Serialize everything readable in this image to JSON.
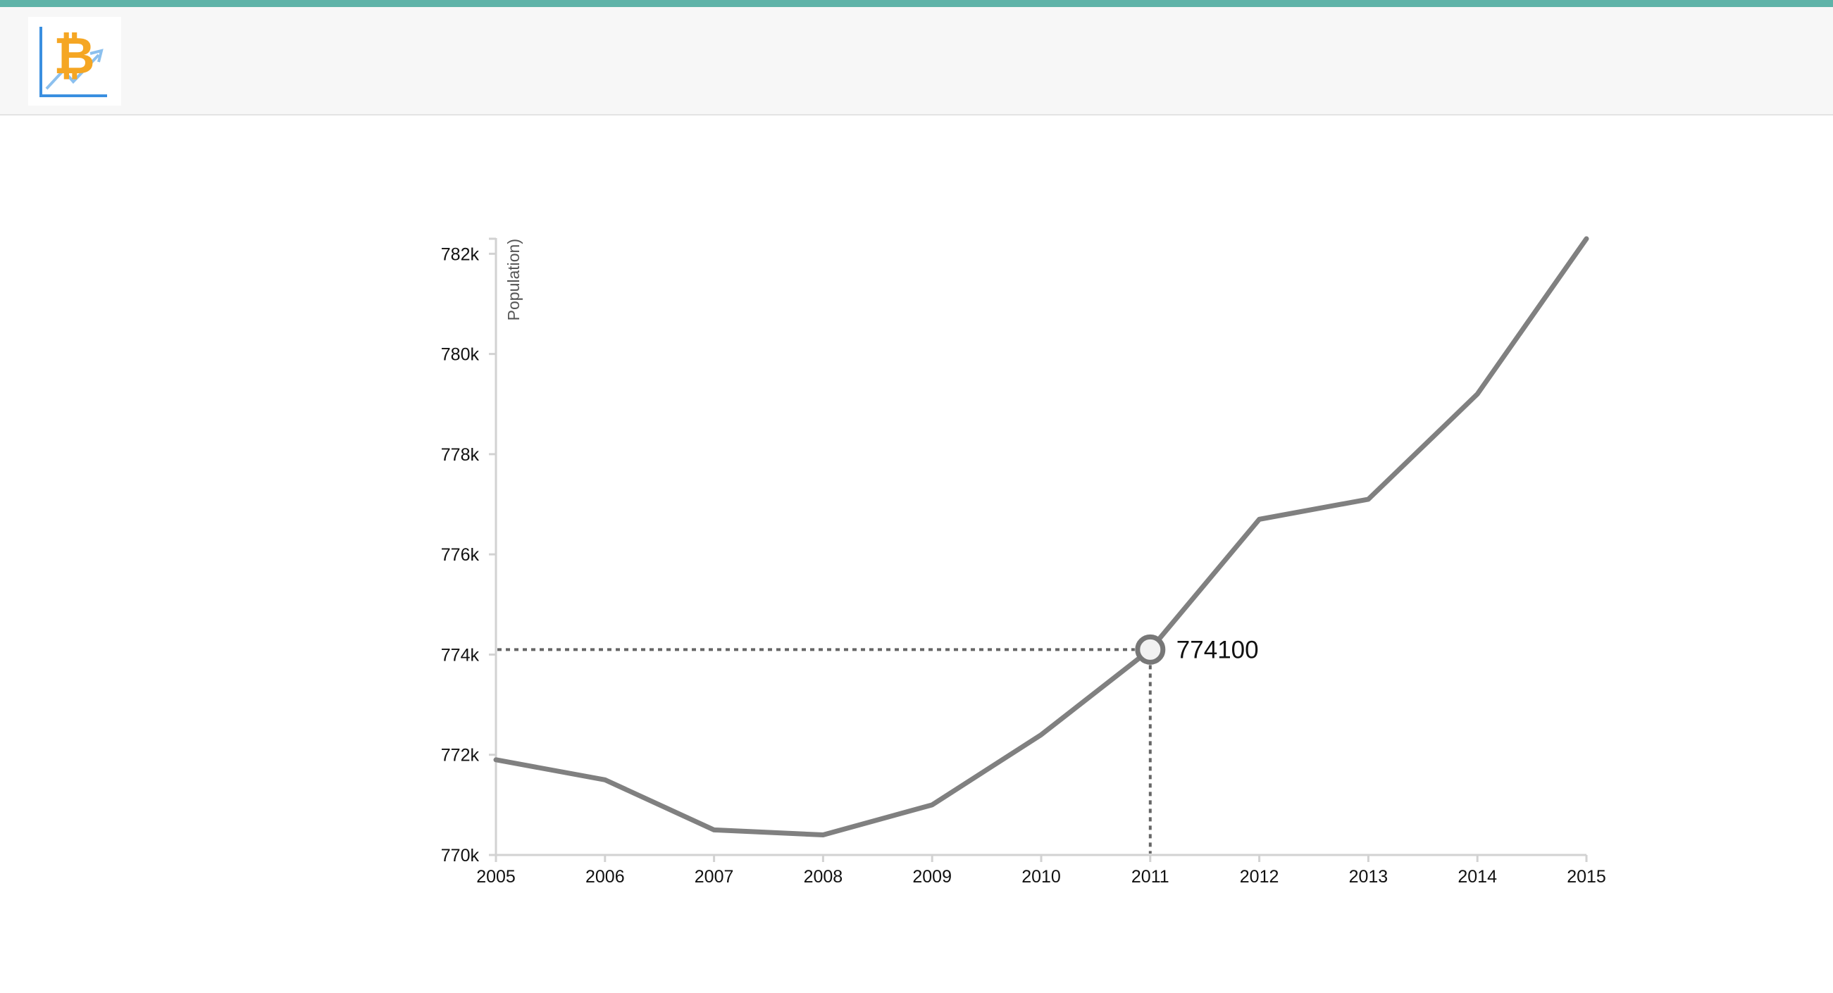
{
  "header": {
    "logo_icon": "bitcoin-chart-logo-icon"
  },
  "chart_data": {
    "type": "line",
    "xlabel": "",
    "ylabel": "Population)",
    "x": [
      2005,
      2006,
      2007,
      2008,
      2009,
      2010,
      2011,
      2012,
      2013,
      2014,
      2015
    ],
    "series": [
      {
        "values": [
          771900,
          771500,
          770500,
          770400,
          771000,
          772400,
          774100,
          776700,
          777100,
          779200,
          782300
        ]
      }
    ],
    "xlim": [
      2005,
      2015
    ],
    "ylim": [
      770000,
      782400
    ],
    "x_ticks": [
      "2005",
      "2006",
      "2007",
      "2008",
      "2009",
      "2010",
      "2011",
      "2012",
      "2013",
      "2014",
      "2015"
    ],
    "y_ticks": [
      {
        "value": 770000,
        "label": "770k"
      },
      {
        "value": 772000,
        "label": "772k"
      },
      {
        "value": 774000,
        "label": "774k"
      },
      {
        "value": 776000,
        "label": "776k"
      },
      {
        "value": 778000,
        "label": "778k"
      },
      {
        "value": 780000,
        "label": "780k"
      },
      {
        "value": 782000,
        "label": "782k"
      }
    ],
    "grid": false,
    "line_color": "#808080",
    "hover": {
      "x": 2011,
      "y": 774100,
      "label": "774100"
    }
  }
}
